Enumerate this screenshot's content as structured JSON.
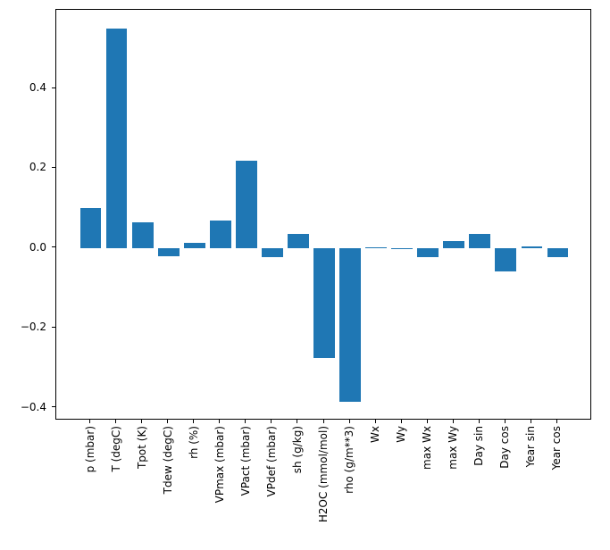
{
  "figure": {
    "background": "#ffffff"
  },
  "chart_data": {
    "type": "bar",
    "title": "",
    "xlabel": "",
    "ylabel": "",
    "categories": [
      "p (mbar)",
      "T (degC)",
      "Tpot (K)",
      "Tdew (degC)",
      "rh (%)",
      "VPmax (mbar)",
      "VPact (mbar)",
      "VPdef (mbar)",
      "sh (g/kg)",
      "H2OC (mmol/mol)",
      "rho (g/m**3)",
      "Wx",
      "Wy",
      "max Wx",
      "max Wy",
      "Day sin",
      "Day cos",
      "Year sin",
      "Year cos"
    ],
    "values": [
      0.1,
      0.55,
      0.065,
      -0.02,
      0.013,
      0.068,
      0.22,
      -0.022,
      0.035,
      -0.275,
      -0.385,
      0.001,
      -0.001,
      -0.022,
      0.018,
      0.035,
      -0.058,
      0.004,
      -0.022
    ],
    "bar_color": "#1f77b4",
    "bar_width_fraction": 0.8,
    "xlim": [
      -1.34,
      19.34
    ],
    "ylim": [
      -0.432,
      0.597
    ],
    "yticks": [
      -0.4,
      -0.2,
      0.0,
      0.2,
      0.4
    ],
    "ytick_labels": [
      "−0.4",
      "−0.2",
      "0.0",
      "0.2",
      "0.4"
    ],
    "grid": false,
    "legend": "none",
    "axis_color": "#000000"
  }
}
